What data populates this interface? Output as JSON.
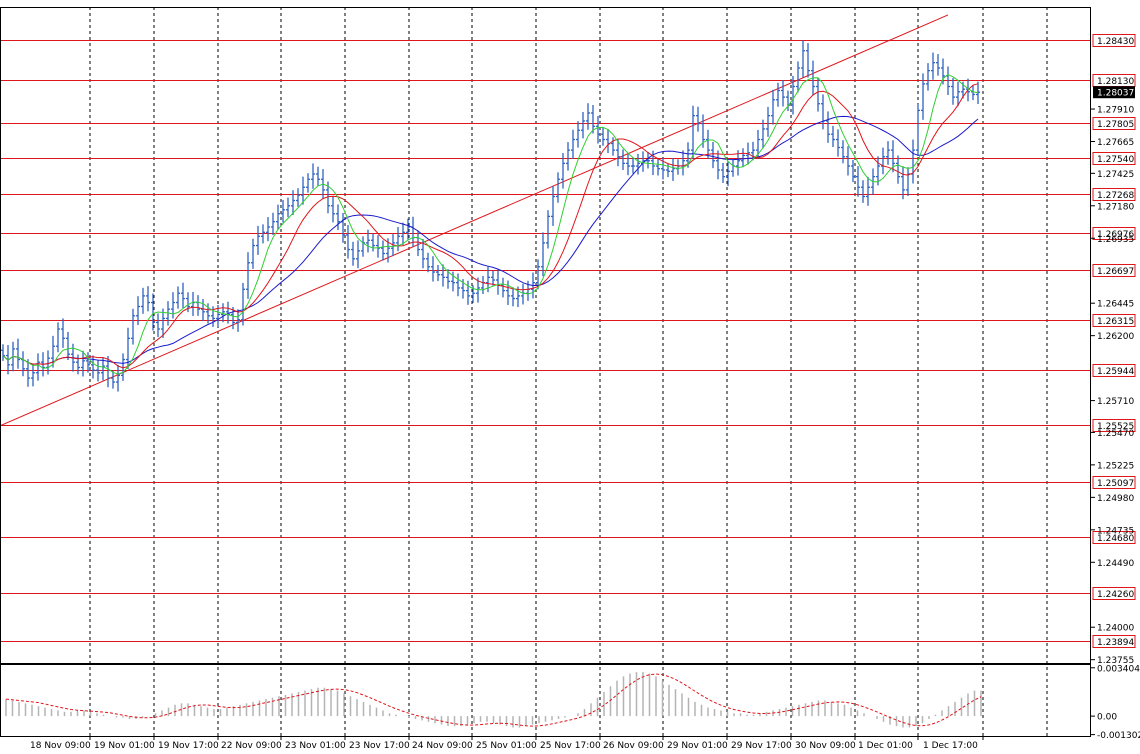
{
  "colors": {
    "background": "#ffffff",
    "frame": "#000000",
    "grid": "#000000",
    "candles": "#2f62c2",
    "level_line": "#e0151a",
    "trend_line": "#e0151a",
    "ma_fast": "#2fcf2f",
    "ma_mid": "#e0151a",
    "ma_slow": "#1a1acc",
    "price_label_bg": "#000000",
    "histogram": "#b4b4b4",
    "signal": "#e0151a"
  },
  "chart_data": [
    {
      "type": "candlestick",
      "title": "",
      "grid": true,
      "y_axis_side": "right",
      "ylim": [
        1.2373,
        1.2868
      ],
      "y_ticks": [
        "1.28430",
        "1.28130",
        "1.28037",
        "1.27910",
        "1.27805",
        "1.27665",
        "1.27540",
        "1.27425",
        "1.27268",
        "1.27180",
        "1.26976",
        "1.26935",
        "1.26697",
        "1.26445",
        "1.26315",
        "1.26200",
        "1.25944",
        "1.25710",
        "1.25525",
        "1.25470",
        "1.25225",
        "1.25097",
        "1.24980",
        "1.24735",
        "1.24680",
        "1.24490",
        "1.24260",
        "1.24000",
        "1.23894",
        "1.23755"
      ],
      "levels": [
        "1.28430",
        "1.28130",
        "1.27805",
        "1.27540",
        "1.27268",
        "1.26976",
        "1.26697",
        "1.26315",
        "1.25944",
        "1.25525",
        "1.25097",
        "1.24680",
        "1.24260",
        "1.23894"
      ],
      "current_price": "1.28037",
      "x_ticks": [
        "18 Nov 09:00",
        "19 Nov 01:00",
        "19 Nov 17:00",
        "22 Nov 09:00",
        "23 Nov 01:00",
        "23 Nov 17:00",
        "24 Nov 09:00",
        "25 Nov 01:00",
        "25 Nov 17:00",
        "26 Nov 09:00",
        "29 Nov 01:00",
        "29 Nov 17:00",
        "30 Nov 09:00",
        "1 Dec 01:00",
        "1 Dec 17:00"
      ],
      "trend_line": {
        "start_index": 0,
        "start_price": 1.2552,
        "end_index": 189,
        "end_price": 1.2862
      },
      "close": [
        1.2605,
        1.2598,
        1.261,
        1.2602,
        1.2595,
        1.2588,
        1.2592,
        1.26,
        1.2596,
        1.2603,
        1.2612,
        1.2625,
        1.2618,
        1.2606,
        1.26,
        1.2596,
        1.2601,
        1.2598,
        1.2594,
        1.2592,
        1.2597,
        1.2588,
        1.2585,
        1.259,
        1.2602,
        1.2618,
        1.2635,
        1.2642,
        1.265,
        1.2645,
        1.263,
        1.2625,
        1.2633,
        1.264,
        1.2645,
        1.2652,
        1.2648,
        1.2642,
        1.2645,
        1.264,
        1.2638,
        1.2635,
        1.2633,
        1.2636,
        1.2638,
        1.2636,
        1.263,
        1.2632,
        1.2655,
        1.2675,
        1.2688,
        1.2695,
        1.2698,
        1.2702,
        1.2706,
        1.2712,
        1.2715,
        1.2718,
        1.2722,
        1.2726,
        1.2732,
        1.2738,
        1.2742,
        1.2738,
        1.273,
        1.2718,
        1.2712,
        1.2706,
        1.2696,
        1.2685,
        1.2678,
        1.2684,
        1.269,
        1.2692,
        1.2688,
        1.2686,
        1.2682,
        1.2686,
        1.269,
        1.2695,
        1.2698,
        1.2702,
        1.2694,
        1.2685,
        1.2678,
        1.2672,
        1.2668,
        1.2666,
        1.2664,
        1.2661,
        1.266,
        1.2656,
        1.2654,
        1.265,
        1.2652,
        1.2656,
        1.266,
        1.2664,
        1.2662,
        1.2658,
        1.2654,
        1.265,
        1.2648,
        1.265,
        1.2652,
        1.2655,
        1.266,
        1.2672,
        1.269,
        1.271,
        1.2725,
        1.2738,
        1.275,
        1.276,
        1.2768,
        1.2775,
        1.2782,
        1.2788,
        1.2778,
        1.2772,
        1.2768,
        1.2765,
        1.276,
        1.2755,
        1.275,
        1.2748,
        1.2748,
        1.275,
        1.2752,
        1.2752,
        1.2748,
        1.2746,
        1.2745,
        1.2744,
        1.2746,
        1.2748,
        1.2752,
        1.276,
        1.2786,
        1.278,
        1.2768,
        1.276,
        1.2752,
        1.2745,
        1.274,
        1.2744,
        1.2748,
        1.2752,
        1.2756,
        1.2758,
        1.276,
        1.2768,
        1.2776,
        1.2786,
        1.2798,
        1.2805,
        1.28,
        1.2794,
        1.2808,
        1.2822,
        1.2835,
        1.282,
        1.2808,
        1.2795,
        1.2782,
        1.2772,
        1.2768,
        1.2762,
        1.2755,
        1.2748,
        1.274,
        1.2732,
        1.2725,
        1.2732,
        1.274,
        1.2748,
        1.2755,
        1.276,
        1.275,
        1.274,
        1.273,
        1.2742,
        1.276,
        1.279,
        1.281,
        1.282,
        1.2826,
        1.2822,
        1.2816,
        1.2808,
        1.28,
        1.2804,
        1.2806,
        1.2804,
        1.2802,
        1.28037
      ]
    },
    {
      "type": "histogram",
      "title": "",
      "y_ticks": [
        "0.003404",
        "0.00",
        "-0.001302"
      ],
      "ylim": [
        -0.0014,
        0.0036
      ],
      "values": [
        0.0012,
        0.0011,
        0.001,
        0.0009,
        0.0008,
        0.0007,
        0.0006,
        0.0005,
        0.0004,
        0.0003,
        0.0003,
        0.0004,
        0.0004,
        0.0003,
        0.0002,
        0.0001,
        0.0,
        -0.0001,
        -0.0001,
        -0.0002,
        -0.0002,
        -0.0001,
        0.0,
        0.0002,
        0.0004,
        0.0006,
        0.0008,
        0.0009,
        0.0009,
        0.0008,
        0.0007,
        0.0006,
        0.0005,
        0.0005,
        0.0006,
        0.0007,
        0.0008,
        0.0009,
        0.001,
        0.0011,
        0.0012,
        0.0013,
        0.0014,
        0.0015,
        0.0016,
        0.0017,
        0.0018,
        0.0019,
        0.002,
        0.002,
        0.0019,
        0.0018,
        0.0016,
        0.0014,
        0.0012,
        0.001,
        0.0008,
        0.0006,
        0.0004,
        0.0002,
        0.0001,
        0.0,
        -0.0001,
        -0.0002,
        -0.0003,
        -0.0004,
        -0.0005,
        -0.0006,
        -0.0007,
        -0.0007,
        -0.0007,
        -0.0006,
        -0.0005,
        -0.0004,
        -0.0004,
        -0.0005,
        -0.0006,
        -0.0007,
        -0.0008,
        -0.0008,
        -0.0007,
        -0.0006,
        -0.0005,
        -0.0004,
        -0.0003,
        -0.0002,
        -0.0001,
        0.0,
        0.0002,
        0.0005,
        0.0009,
        0.0013,
        0.0017,
        0.0021,
        0.0025,
        0.0028,
        0.003,
        0.0031,
        0.0031,
        0.003,
        0.0028,
        0.0025,
        0.0022,
        0.0019,
        0.0016,
        0.0013,
        0.001,
        0.0008,
        0.0006,
        0.0005,
        0.0004,
        0.0003,
        0.0002,
        0.0002,
        0.0001,
        0.0001,
        0.0002,
        0.0003,
        0.0004,
        0.0005,
        0.0006,
        0.0007,
        0.0008,
        0.0009,
        0.001,
        0.0011,
        0.0011,
        0.001,
        0.0009,
        0.0008,
        0.0006,
        0.0004,
        0.0002,
        0.0,
        -0.0002,
        -0.0004,
        -0.0006,
        -0.0007,
        -0.0008,
        -0.0008,
        -0.0007,
        -0.0005,
        -0.0002,
        0.0001,
        0.0004,
        0.0007,
        0.001,
        0.0013,
        0.0016,
        0.0018,
        0.0018
      ]
    }
  ]
}
